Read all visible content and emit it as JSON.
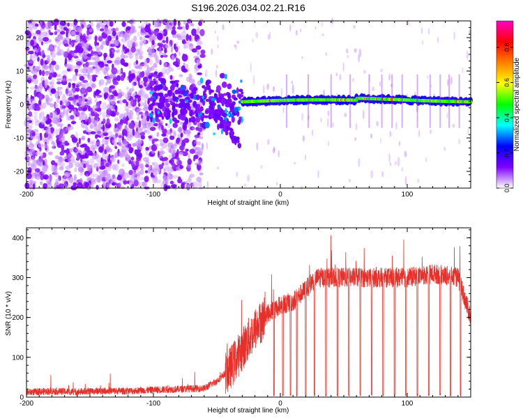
{
  "title": "S196.2026.034.02.21.R16",
  "chart_data": [
    {
      "type": "heatmap",
      "xlabel": "Height of straight line (km)",
      "ylabel": "Frequency (Hz)",
      "xlim": [
        -200,
        150
      ],
      "ylim": [
        -25,
        25
      ],
      "xticks": [
        -200,
        -100,
        0,
        100
      ],
      "yticks": [
        20,
        10,
        0,
        -10,
        -20
      ],
      "colorbar": {
        "label": "Normalized spectral amplitude",
        "range": [
          0,
          1
        ],
        "ticks": [
          "0.0",
          "0.2",
          "0.4",
          "0.6",
          "0.8"
        ],
        "colormap": [
          "#ffffff",
          "#7f00ff",
          "#0000ff",
          "#00ffff",
          "#00ff00",
          "#ffff00",
          "#ff7f00",
          "#ff0000",
          "#ff00c8"
        ]
      },
      "features": [
        {
          "name": "broadband noise",
          "x_range": [
            -200,
            -60
          ],
          "y_range": [
            -25,
            25
          ],
          "amplitude": 0.12
        },
        {
          "name": "dense cluster",
          "x_range": [
            -105,
            -30
          ],
          "y_center": 0,
          "amplitude": 0.3
        },
        {
          "name": "spectral line",
          "x_range": [
            -30,
            150
          ],
          "y_values": [
            0.5,
            1,
            1.5,
            2,
            1.5,
            1
          ],
          "amplitude": 0.6
        }
      ]
    },
    {
      "type": "line",
      "xlabel": "Height of straight line (km)",
      "ylabel": "SNR (10 * v/v)",
      "xlim": [
        -200,
        150
      ],
      "ylim": [
        0,
        425
      ],
      "xticks": [
        -200,
        -100,
        0,
        100
      ],
      "yticks": [
        0,
        100,
        200,
        300,
        400
      ],
      "color": "#e8302a",
      "x": [
        -200,
        -180,
        -160,
        -140,
        -120,
        -100,
        -80,
        -60,
        -50,
        -40,
        -30,
        -20,
        -10,
        0,
        10,
        20,
        25,
        30,
        40,
        60,
        80,
        100,
        120,
        140,
        150
      ],
      "values": [
        12,
        15,
        13,
        16,
        15,
        18,
        20,
        22,
        40,
        70,
        120,
        170,
        210,
        230,
        240,
        270,
        290,
        300,
        300,
        300,
        300,
        300,
        310,
        300,
        200
      ],
      "dropouts_x": [
        -5,
        2,
        8,
        13,
        20,
        27,
        36,
        45,
        54,
        63,
        72,
        81,
        90,
        99,
        108,
        117,
        126,
        134,
        142
      ]
    }
  ]
}
